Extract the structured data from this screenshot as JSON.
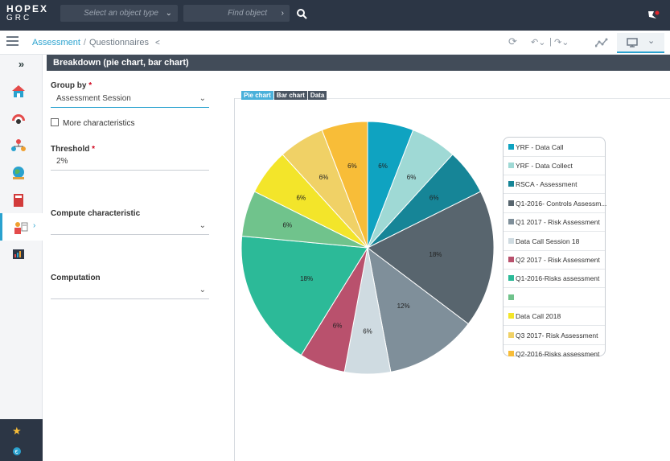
{
  "topbar": {
    "logo_line1": "HOPEX",
    "logo_line2": "GRC",
    "object_type_placeholder": "Select an object type",
    "find_placeholder": "Find object"
  },
  "breadcrumb": {
    "root": "Assessment",
    "current": "Questionnaires"
  },
  "panel_title": "Breakdown (pie chart, bar chart)",
  "form": {
    "group_by_label": "Group by",
    "group_by_value": "Assessment Session",
    "more_characteristics_label": "More characteristics",
    "threshold_label": "Threshold",
    "threshold_value": "2%",
    "compute_characteristic_label": "Compute characteristic",
    "computation_label": "Computation",
    "required_mark": "*"
  },
  "tabs": [
    "Pie chart",
    "Bar chart",
    "Data"
  ],
  "colors": {
    "accent": "#2aa2cf",
    "topbar": "#2c3645",
    "panel_header": "#424c59"
  },
  "chart_data": {
    "type": "pie",
    "slices": [
      {
        "label": "YRF - Data Call",
        "value": 6,
        "color": "#0fa3c1"
      },
      {
        "label": "YRF - Data Collect",
        "value": 6,
        "color": "#9fd9d5"
      },
      {
        "label": "RSCA - Assessment",
        "value": 6,
        "color": "#168597"
      },
      {
        "label": "Q1-2016- Controls Assessm...",
        "value": 18,
        "color": "#58656e"
      },
      {
        "label": "Q1 2017 - Risk Assessment",
        "value": 12,
        "color": "#7f8f9a"
      },
      {
        "label": "Data Call Session 18",
        "value": 6,
        "color": "#cfdbe1"
      },
      {
        "label": "Q2 2017 - Risk Assessment",
        "value": 6,
        "color": "#b9516d"
      },
      {
        "label": "Q1-2016-Risks assessment",
        "value": 18,
        "color": "#2cba98"
      },
      {
        "label": "",
        "value": 6,
        "color": "#70c38c"
      },
      {
        "label": "Data Call 2018",
        "value": 6,
        "color": "#f3e52a"
      },
      {
        "label": "Q3 2017- Risk Assessment",
        "value": 6,
        "color": "#f0d166"
      },
      {
        "label": "Q2-2016-Risks assessment",
        "value": 6,
        "color": "#f8bd38"
      }
    ],
    "data_label_suffix": "%",
    "legend_position": "right"
  }
}
